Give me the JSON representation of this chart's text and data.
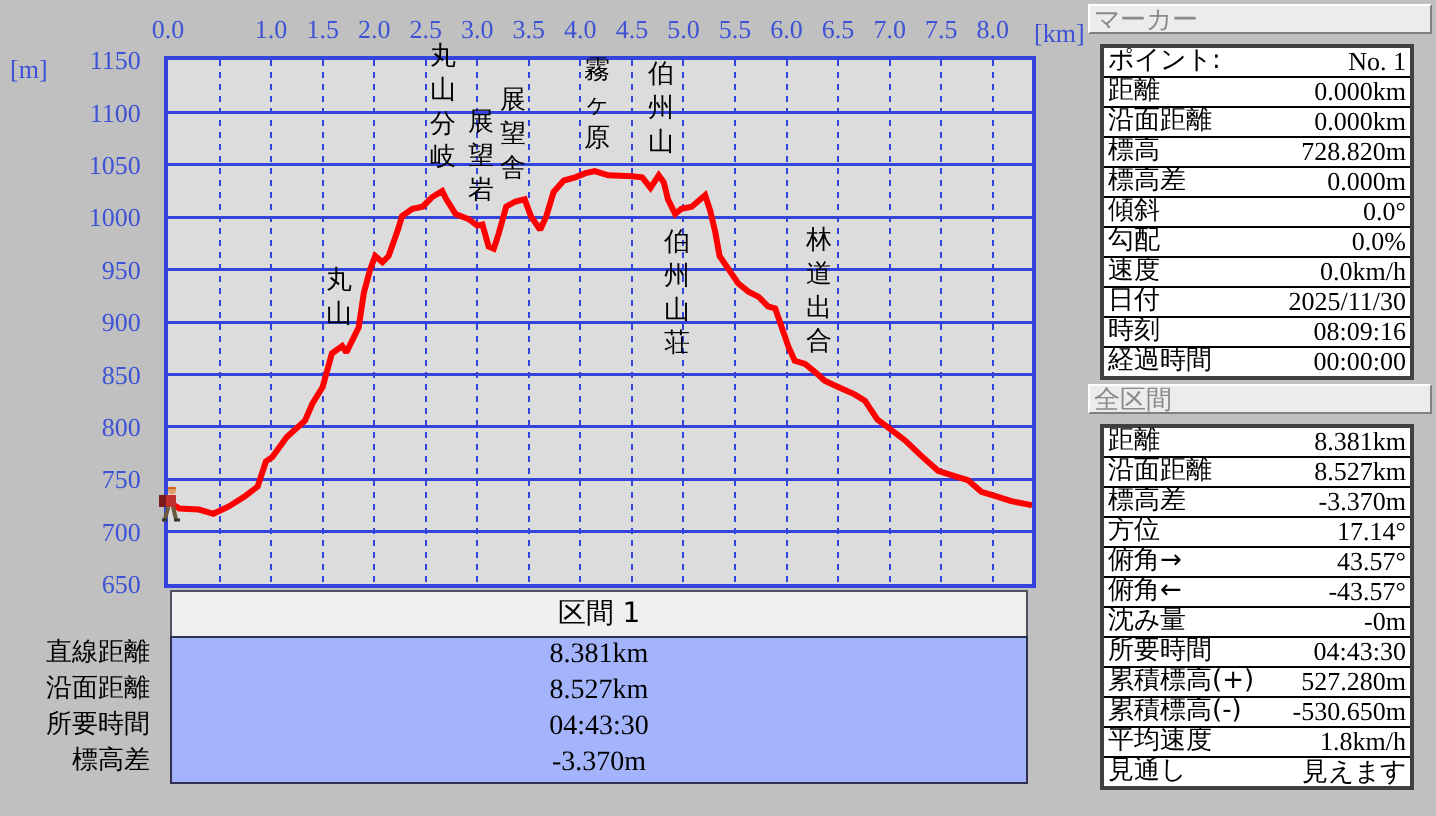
{
  "chart_data": [
    {
      "type": "line",
      "xlabel": "[km]",
      "ylabel": "[m]",
      "color": "#ff0000",
      "grid": true,
      "xlim": [
        0,
        8.381
      ],
      "ylim": [
        650,
        1150
      ],
      "xticks": [
        {
          "value": 0,
          "label": "0.0"
        },
        {
          "value": 0.5,
          "label": null
        },
        {
          "value": 1,
          "label": "1.0"
        },
        1.5,
        {
          "value": 2,
          "label": "2.0"
        },
        2.5,
        {
          "value": 3,
          "label": "3.0"
        },
        3.5,
        {
          "value": 4,
          "label": "4.0"
        },
        4.5,
        {
          "value": 5,
          "label": "5.0"
        },
        5.5,
        {
          "value": 6,
          "label": "6.0"
        },
        6.5,
        {
          "value": 7,
          "label": "7.0"
        },
        7.5,
        {
          "value": 8,
          "label": "8.0"
        }
      ],
      "yticks": [
        650,
        700,
        750,
        800,
        850,
        900,
        950,
        1000,
        1050,
        1100,
        1150
      ],
      "x": [
        0,
        0.11,
        0.3,
        0.44,
        0.59,
        0.75,
        0.87,
        0.95,
        1.01,
        1.15,
        1.33,
        1.4,
        1.5,
        1.59,
        1.69,
        1.73,
        1.85,
        1.9,
        1.96,
        2.01,
        2.08,
        2.14,
        2.23,
        2.27,
        2.37,
        2.47,
        2.56,
        2.66,
        2.7,
        2.79,
        2.92,
        3,
        3.05,
        3.11,
        3.16,
        3.21,
        3.28,
        3.37,
        3.46,
        3.52,
        3.61,
        3.67,
        3.74,
        3.84,
        3.95,
        4.05,
        4.14,
        4.27,
        4.5,
        4.6,
        4.68,
        4.76,
        4.81,
        4.85,
        4.92,
        4.98,
        5.08,
        5.15,
        5.21,
        5.26,
        5.31,
        5.35,
        5.44,
        5.53,
        5.63,
        5.73,
        5.82,
        5.89,
        5.95,
        6.02,
        6.08,
        6.18,
        6.28,
        6.37,
        6.5,
        6.66,
        6.76,
        6.88,
        6.99,
        7.15,
        7.31,
        7.47,
        7.63,
        7.76,
        7.89,
        8.02,
        8.18,
        8.34,
        8.381
      ],
      "values": [
        729,
        722,
        721,
        717,
        724,
        734,
        743,
        767,
        771,
        790,
        806,
        822,
        838,
        870,
        877,
        871,
        895,
        928,
        950,
        963,
        957,
        963,
        988,
        1001,
        1008,
        1010,
        1019,
        1025,
        1017,
        1003,
        998,
        992,
        993,
        972,
        970,
        985,
        1010,
        1015,
        1017,
        1001,
        988,
        1001,
        1024,
        1035,
        1038,
        1042,
        1044,
        1040,
        1039,
        1038,
        1028,
        1040,
        1033,
        1017,
        1003,
        1008,
        1010,
        1016,
        1021,
        1006,
        985,
        963,
        950,
        937,
        929,
        924,
        915,
        913,
        896,
        876,
        863,
        860,
        852,
        844,
        838,
        831,
        825,
        807,
        799,
        787,
        772,
        758,
        753,
        749,
        738,
        734,
        729,
        726,
        725
      ],
      "annotations": [
        {
          "text": "丸山",
          "x": 1.66,
          "y": 875
        },
        {
          "text": "丸山分岐",
          "x": 2.66,
          "y": 1025
        },
        {
          "text": "展望岩",
          "x": 3.03,
          "y": 993
        },
        {
          "text": "展望舎",
          "x": 3.35,
          "y": 1014
        },
        {
          "text": "霧ヶ原",
          "x": 4.16,
          "y": 1044
        },
        {
          "text": "伯州山",
          "x": 4.77,
          "y": 1040
        },
        {
          "text": "伯州山荘",
          "x": 4.92,
          "y": 1003
        },
        {
          "text": "林道出合",
          "x": 6.31,
          "y": 849
        }
      ]
    },
    {
      "type": "other",
      "title": "区間 1",
      "annotations": [
        "直線距離",
        "8.381km",
        "沿面距離",
        "8.527km",
        "所要時間",
        "04:43:30",
        "標高差",
        "-3.370m"
      ]
    },
    {
      "type": "other",
      "title": "マーカー",
      "annotations": [
        "ポイント:",
        "No. 1",
        "距離",
        "0.000km",
        "沿面距離",
        "0.000km",
        "標高",
        "728.820m",
        "標高差",
        "0.000m",
        "傾斜",
        "0.0°",
        "勾配",
        "0.0%",
        "速度",
        "0.0km/h",
        "日付",
        "2025/11/30",
        "時刻",
        "08:09:16",
        "経過時間",
        "00:00:00"
      ]
    },
    {
      "type": "other",
      "title": "全区間",
      "annotations": [
        "距離",
        "8.381km",
        "沿面距離",
        "8.527km",
        "標高差",
        "-3.370m",
        "方位",
        "17.14°",
        "俯角→",
        "43.57°",
        "俯角←",
        "-43.57°",
        "沈み量",
        "-0m",
        "所要時間",
        "04:43:30",
        "累積標高(+)",
        "527.280m",
        "累積標高(-)",
        "-530.650m",
        "平均速度",
        "1.8km/h",
        "見通し",
        "見えます"
      ]
    }
  ]
}
